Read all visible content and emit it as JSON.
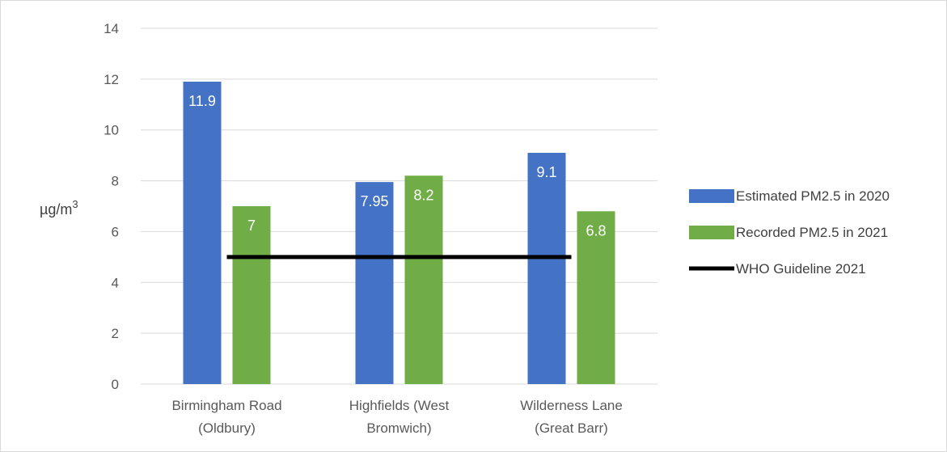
{
  "chart_data": {
    "type": "bar",
    "title": "",
    "xlabel": "",
    "ylabel": "µg/m",
    "ylabel_superscript": "3",
    "ylim": [
      0,
      14
    ],
    "yticks": [
      0,
      2,
      4,
      6,
      8,
      10,
      12,
      14
    ],
    "grid": true,
    "legend_position": "right",
    "categories": [
      [
        "Birmingham Road",
        "(Oldbury)"
      ],
      [
        "Highfields (West",
        "Bromwich)"
      ],
      [
        "Wilderness Lane",
        "(Great Barr)"
      ]
    ],
    "series": [
      {
        "name": "Estimated PM2.5 in 2020",
        "color": "#4472c4",
        "values": [
          11.9,
          7.95,
          9.1
        ],
        "labels": [
          "11.9",
          "7.95",
          "9.1"
        ]
      },
      {
        "name": "Recorded PM2.5 in 2021",
        "color": "#70ad47",
        "values": [
          7,
          8.2,
          6.8
        ],
        "labels": [
          "7",
          "8.2",
          "6.8"
        ]
      }
    ],
    "reference_line": {
      "name": "WHO Guideline 2021",
      "color": "#000000",
      "value": 5
    }
  }
}
